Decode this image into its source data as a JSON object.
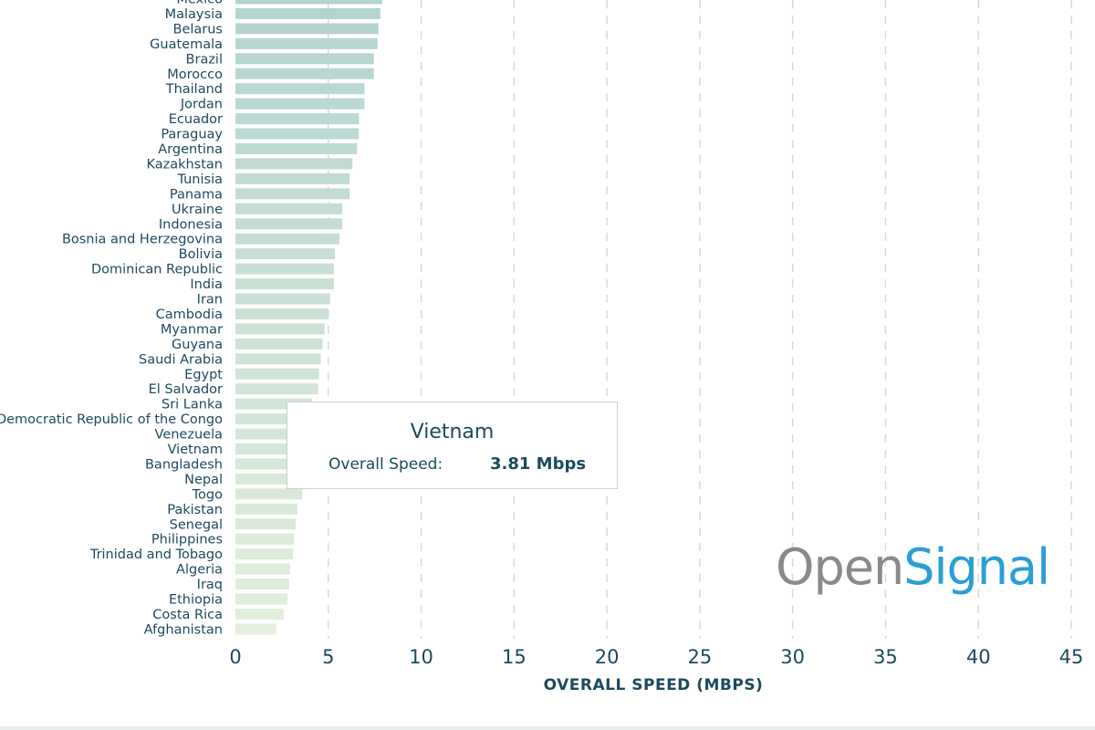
{
  "chart_data": {
    "type": "bar",
    "orientation": "horizontal",
    "xlabel": "OVERALL SPEED (MBPS)",
    "xlim": [
      0,
      45
    ],
    "xticks": [
      0,
      5,
      10,
      15,
      20,
      25,
      30,
      35,
      40,
      45
    ],
    "grid": "vertical dashed",
    "categories": [
      "Mexico",
      "Malaysia",
      "Belarus",
      "Guatemala",
      "Brazil",
      "Morocco",
      "Thailand",
      "Jordan",
      "Ecuador",
      "Paraguay",
      "Argentina",
      "Kazakhstan",
      "Tunisia",
      "Panama",
      "Ukraine",
      "Indonesia",
      "Bosnia and Herzegovina",
      "Bolivia",
      "Dominican Republic",
      "India",
      "Iran",
      "Cambodia",
      "Myanmar",
      "Guyana",
      "Saudi Arabia",
      "Egypt",
      "El Salvador",
      "Sri Lanka",
      "Democratic Republic of the Congo",
      "Venezuela",
      "Vietnam",
      "Bangladesh",
      "Nepal",
      "Togo",
      "Pakistan",
      "Senegal",
      "Philippines",
      "Trinidad and Tobago",
      "Algeria",
      "Iraq",
      "Ethiopia",
      "Costa Rica",
      "Afghanistan"
    ],
    "values": [
      7.9,
      7.8,
      7.7,
      7.65,
      7.45,
      7.45,
      6.95,
      6.95,
      6.65,
      6.65,
      6.55,
      6.3,
      6.15,
      6.15,
      5.75,
      5.75,
      5.6,
      5.35,
      5.3,
      5.3,
      5.1,
      5.0,
      4.8,
      4.7,
      4.6,
      4.5,
      4.45,
      4.1,
      4.0,
      3.9,
      3.81,
      3.75,
      3.7,
      3.6,
      3.35,
      3.25,
      3.15,
      3.1,
      2.95,
      2.9,
      2.8,
      2.6,
      2.2
    ]
  },
  "tooltip": {
    "title": "Vietnam",
    "label": "Overall Speed:",
    "value": "3.81 Mbps"
  },
  "logo": {
    "part1": "Open",
    "part2": "Signal"
  },
  "colors": {
    "bar_top": "#b3d3d0",
    "bar_bottom": "#e3efdc",
    "text": "#1d4a5c",
    "logo_grey": "#8a8a8a",
    "logo_blue": "#2b9fd4"
  }
}
